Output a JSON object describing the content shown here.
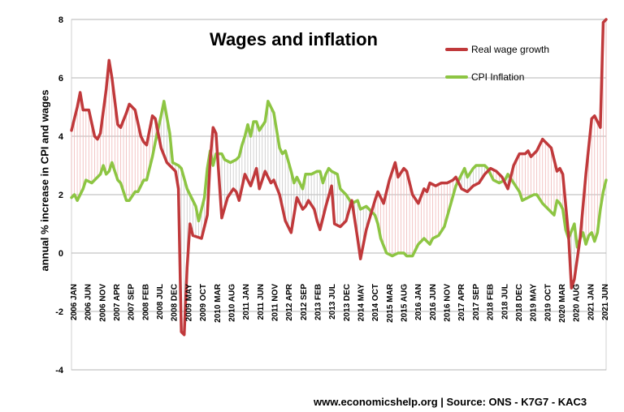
{
  "chart_data": {
    "type": "line",
    "title": "Wages and inflation",
    "ylabel": "annual % increase in CPI and wages",
    "ylim": [
      -4,
      8
    ],
    "y_ticks": [
      "-4",
      "-2",
      "0",
      "2",
      "4",
      "6",
      "8"
    ],
    "x_tick_labels": [
      "2006 JAN",
      "2006 JUN",
      "2006 NOV",
      "2007 APR",
      "2007 SEP",
      "2008 FEB",
      "2008 JUL",
      "2008 DEC",
      "2009 MAY",
      "2009 OCT",
      "2010 MAR",
      "2010 AUG",
      "2011 JAN",
      "2011 JUN",
      "2011 NOV",
      "2012 APR",
      "2012 SEP",
      "2013 FEB",
      "2013 JUL",
      "2013 DEC",
      "2014 MAY",
      "2014 OCT",
      "2015 MAR",
      "2015 AUG",
      "2016 JAN",
      "2016 JUN",
      "2016 NOV",
      "2017 APR",
      "2017 SEP",
      "2018 FEB",
      "2018 JUL",
      "2018 DEC",
      "2019 MAY",
      "2019 OCT",
      "2020 MAR",
      "2020 AUG",
      "2021 JAN",
      "2021 JUN"
    ],
    "grid": true,
    "legend_position": "top-right",
    "series": [
      {
        "name": "Real wage growth",
        "color": "#c0393b",
        "points": [
          [
            "2006-01",
            4.2
          ],
          [
            "2006-03",
            5.0
          ],
          [
            "2006-04",
            5.5
          ],
          [
            "2006-05",
            4.9
          ],
          [
            "2006-07",
            4.9
          ],
          [
            "2006-09",
            4.0
          ],
          [
            "2006-10",
            3.9
          ],
          [
            "2006-11",
            4.1
          ],
          [
            "2007-01",
            5.6
          ],
          [
            "2007-02",
            6.6
          ],
          [
            "2007-03",
            6.0
          ],
          [
            "2007-05",
            4.4
          ],
          [
            "2007-06",
            4.3
          ],
          [
            "2007-08",
            4.8
          ],
          [
            "2007-09",
            5.1
          ],
          [
            "2007-11",
            4.9
          ],
          [
            "2008-01",
            4.0
          ],
          [
            "2008-02",
            3.8
          ],
          [
            "2008-03",
            3.7
          ],
          [
            "2008-05",
            4.7
          ],
          [
            "2008-06",
            4.6
          ],
          [
            "2008-08",
            3.6
          ],
          [
            "2008-10",
            3.1
          ],
          [
            "2008-11",
            3.0
          ],
          [
            "2009-01",
            2.8
          ],
          [
            "2009-02",
            2.2
          ],
          [
            "2009-03",
            -2.7
          ],
          [
            "2009-04",
            -2.8
          ],
          [
            "2009-05",
            -0.5
          ],
          [
            "2009-06",
            1.0
          ],
          [
            "2009-07",
            0.6
          ],
          [
            "2009-10",
            0.5
          ],
          [
            "2009-12",
            1.3
          ],
          [
            "2010-01",
            3.2
          ],
          [
            "2010-02",
            4.3
          ],
          [
            "2010-03",
            4.1
          ],
          [
            "2010-05",
            1.2
          ],
          [
            "2010-07",
            1.9
          ],
          [
            "2010-09",
            2.2
          ],
          [
            "2010-10",
            2.1
          ],
          [
            "2010-11",
            1.8
          ],
          [
            "2011-01",
            2.7
          ],
          [
            "2011-03",
            2.3
          ],
          [
            "2011-05",
            2.9
          ],
          [
            "2011-06",
            2.2
          ],
          [
            "2011-08",
            2.8
          ],
          [
            "2011-10",
            2.4
          ],
          [
            "2011-11",
            2.5
          ],
          [
            "2012-01",
            2.0
          ],
          [
            "2012-03",
            1.1
          ],
          [
            "2012-05",
            0.7
          ],
          [
            "2012-07",
            1.9
          ],
          [
            "2012-09",
            1.5
          ],
          [
            "2012-10",
            1.6
          ],
          [
            "2012-11",
            1.8
          ],
          [
            "2013-01",
            1.5
          ],
          [
            "2013-02",
            1.1
          ],
          [
            "2013-03",
            0.8
          ],
          [
            "2013-05",
            1.6
          ],
          [
            "2013-07",
            2.3
          ],
          [
            "2013-08",
            1.0
          ],
          [
            "2013-10",
            0.9
          ],
          [
            "2013-12",
            1.1
          ],
          [
            "2014-02",
            1.8
          ],
          [
            "2014-04",
            0.5
          ],
          [
            "2014-05",
            -0.2
          ],
          [
            "2014-07",
            0.8
          ],
          [
            "2014-10",
            1.8
          ],
          [
            "2014-11",
            2.1
          ],
          [
            "2015-01",
            1.7
          ],
          [
            "2015-03",
            2.5
          ],
          [
            "2015-05",
            3.1
          ],
          [
            "2015-06",
            2.6
          ],
          [
            "2015-08",
            2.9
          ],
          [
            "2015-09",
            2.8
          ],
          [
            "2015-11",
            2.0
          ],
          [
            "2016-01",
            1.7
          ],
          [
            "2016-03",
            2.2
          ],
          [
            "2016-04",
            2.1
          ],
          [
            "2016-05",
            2.4
          ],
          [
            "2016-07",
            2.3
          ],
          [
            "2016-09",
            2.4
          ],
          [
            "2016-11",
            2.4
          ],
          [
            "2017-01",
            2.5
          ],
          [
            "2017-02",
            2.6
          ],
          [
            "2017-04",
            2.2
          ],
          [
            "2017-06",
            2.1
          ],
          [
            "2017-08",
            2.3
          ],
          [
            "2017-10",
            2.4
          ],
          [
            "2017-12",
            2.7
          ],
          [
            "2018-02",
            2.9
          ],
          [
            "2018-04",
            2.8
          ],
          [
            "2018-06",
            2.6
          ],
          [
            "2018-07",
            2.4
          ],
          [
            "2018-08",
            2.2
          ],
          [
            "2018-10",
            3.0
          ],
          [
            "2018-12",
            3.4
          ],
          [
            "2019-02",
            3.4
          ],
          [
            "2019-03",
            3.5
          ],
          [
            "2019-04",
            3.3
          ],
          [
            "2019-06",
            3.5
          ],
          [
            "2019-08",
            3.9
          ],
          [
            "2019-09",
            3.8
          ],
          [
            "2019-11",
            3.6
          ],
          [
            "2020-01",
            2.8
          ],
          [
            "2020-02",
            2.9
          ],
          [
            "2020-03",
            2.7
          ],
          [
            "2020-05",
            0.6
          ],
          [
            "2020-06",
            -1.2
          ],
          [
            "2020-07",
            -0.9
          ],
          [
            "2020-09",
            0.5
          ],
          [
            "2020-11",
            2.7
          ],
          [
            "2021-01",
            4.6
          ],
          [
            "2021-02",
            4.7
          ],
          [
            "2021-04",
            4.3
          ],
          [
            "2021-05",
            7.9
          ],
          [
            "2021-06",
            8.0
          ]
        ]
      },
      {
        "name": "CPI Inflation",
        "color": "#8dc543",
        "points": [
          [
            "2006-01",
            1.9
          ],
          [
            "2006-02",
            2.0
          ],
          [
            "2006-03",
            1.8
          ],
          [
            "2006-05",
            2.2
          ],
          [
            "2006-06",
            2.5
          ],
          [
            "2006-08",
            2.4
          ],
          [
            "2006-09",
            2.5
          ],
          [
            "2006-11",
            2.7
          ],
          [
            "2006-12",
            3.0
          ],
          [
            "2007-01",
            2.7
          ],
          [
            "2007-02",
            2.8
          ],
          [
            "2007-03",
            3.1
          ],
          [
            "2007-05",
            2.5
          ],
          [
            "2007-06",
            2.4
          ],
          [
            "2007-08",
            1.8
          ],
          [
            "2007-09",
            1.8
          ],
          [
            "2007-11",
            2.1
          ],
          [
            "2007-12",
            2.1
          ],
          [
            "2008-02",
            2.5
          ],
          [
            "2008-03",
            2.5
          ],
          [
            "2008-05",
            3.3
          ],
          [
            "2008-06",
            3.8
          ],
          [
            "2008-08",
            4.7
          ],
          [
            "2008-09",
            5.2
          ],
          [
            "2008-11",
            4.1
          ],
          [
            "2008-12",
            3.1
          ],
          [
            "2009-02",
            3.0
          ],
          [
            "2009-03",
            2.9
          ],
          [
            "2009-05",
            2.2
          ],
          [
            "2009-07",
            1.8
          ],
          [
            "2009-08",
            1.6
          ],
          [
            "2009-09",
            1.1
          ],
          [
            "2009-10",
            1.5
          ],
          [
            "2009-11",
            1.9
          ],
          [
            "2009-12",
            2.9
          ],
          [
            "2010-01",
            3.5
          ],
          [
            "2010-02",
            3.0
          ],
          [
            "2010-03",
            3.4
          ],
          [
            "2010-05",
            3.4
          ],
          [
            "2010-06",
            3.2
          ],
          [
            "2010-08",
            3.1
          ],
          [
            "2010-10",
            3.2
          ],
          [
            "2010-11",
            3.3
          ],
          [
            "2010-12",
            3.7
          ],
          [
            "2011-01",
            4.0
          ],
          [
            "2011-02",
            4.4
          ],
          [
            "2011-03",
            4.0
          ],
          [
            "2011-04",
            4.5
          ],
          [
            "2011-05",
            4.5
          ],
          [
            "2011-06",
            4.2
          ],
          [
            "2011-08",
            4.5
          ],
          [
            "2011-09",
            5.2
          ],
          [
            "2011-10",
            5.0
          ],
          [
            "2011-11",
            4.8
          ],
          [
            "2012-01",
            3.6
          ],
          [
            "2012-02",
            3.4
          ],
          [
            "2012-03",
            3.5
          ],
          [
            "2012-05",
            2.8
          ],
          [
            "2012-06",
            2.4
          ],
          [
            "2012-07",
            2.6
          ],
          [
            "2012-09",
            2.2
          ],
          [
            "2012-10",
            2.7
          ],
          [
            "2012-12",
            2.7
          ],
          [
            "2013-02",
            2.8
          ],
          [
            "2013-03",
            2.8
          ],
          [
            "2013-04",
            2.4
          ],
          [
            "2013-05",
            2.7
          ],
          [
            "2013-06",
            2.9
          ],
          [
            "2013-07",
            2.8
          ],
          [
            "2013-09",
            2.7
          ],
          [
            "2013-10",
            2.2
          ],
          [
            "2013-12",
            2.0
          ],
          [
            "2014-02",
            1.7
          ],
          [
            "2014-04",
            1.8
          ],
          [
            "2014-05",
            1.5
          ],
          [
            "2014-07",
            1.6
          ],
          [
            "2014-08",
            1.5
          ],
          [
            "2014-10",
            1.3
          ],
          [
            "2014-11",
            1.0
          ],
          [
            "2014-12",
            0.5
          ],
          [
            "2015-02",
            0.0
          ],
          [
            "2015-04",
            -0.1
          ],
          [
            "2015-06",
            0.0
          ],
          [
            "2015-08",
            0.0
          ],
          [
            "2015-09",
            -0.1
          ],
          [
            "2015-11",
            -0.1
          ],
          [
            "2016-01",
            0.3
          ],
          [
            "2016-03",
            0.5
          ],
          [
            "2016-05",
            0.3
          ],
          [
            "2016-06",
            0.5
          ],
          [
            "2016-08",
            0.6
          ],
          [
            "2016-10",
            0.9
          ],
          [
            "2016-12",
            1.6
          ],
          [
            "2017-02",
            2.3
          ],
          [
            "2017-04",
            2.7
          ],
          [
            "2017-05",
            2.9
          ],
          [
            "2017-06",
            2.6
          ],
          [
            "2017-08",
            2.9
          ],
          [
            "2017-09",
            3.0
          ],
          [
            "2017-10",
            3.0
          ],
          [
            "2017-12",
            3.0
          ],
          [
            "2018-01",
            2.9
          ],
          [
            "2018-02",
            2.7
          ],
          [
            "2018-03",
            2.5
          ],
          [
            "2018-05",
            2.4
          ],
          [
            "2018-07",
            2.5
          ],
          [
            "2018-08",
            2.7
          ],
          [
            "2018-10",
            2.4
          ],
          [
            "2018-12",
            2.1
          ],
          [
            "2019-01",
            1.8
          ],
          [
            "2019-03",
            1.9
          ],
          [
            "2019-05",
            2.0
          ],
          [
            "2019-06",
            2.0
          ],
          [
            "2019-08",
            1.7
          ],
          [
            "2019-10",
            1.5
          ],
          [
            "2019-12",
            1.3
          ],
          [
            "2020-01",
            1.8
          ],
          [
            "2020-02",
            1.7
          ],
          [
            "2020-03",
            1.5
          ],
          [
            "2020-04",
            0.8
          ],
          [
            "2020-05",
            0.5
          ],
          [
            "2020-07",
            1.0
          ],
          [
            "2020-08",
            0.2
          ],
          [
            "2020-09",
            0.5
          ],
          [
            "2020-10",
            0.7
          ],
          [
            "2020-11",
            0.3
          ],
          [
            "2020-12",
            0.6
          ],
          [
            "2021-01",
            0.7
          ],
          [
            "2021-02",
            0.4
          ],
          [
            "2021-03",
            0.7
          ],
          [
            "2021-04",
            1.5
          ],
          [
            "2021-05",
            2.1
          ],
          [
            "2021-06",
            2.5
          ]
        ]
      }
    ],
    "source": "www.economicshelp.org | Source: ONS - K7G7 - KAC3"
  }
}
